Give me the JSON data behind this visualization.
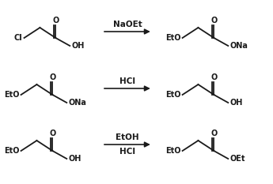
{
  "background_color": "#ffffff",
  "line_color": "#1a1a1a",
  "text_color": "#1a1a1a",
  "arrow_color": "#1a1a1a",
  "font_size_label": 7.0,
  "font_size_reagent": 7.5,
  "rows": [
    {
      "reagent": "NaOEt",
      "reagent2": ""
    },
    {
      "reagent": "HCl",
      "reagent2": ""
    },
    {
      "reagent": "EtOH",
      "reagent2": "HCl"
    }
  ]
}
